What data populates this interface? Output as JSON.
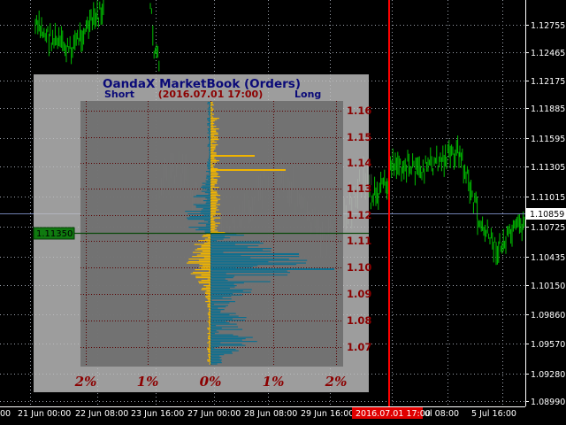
{
  "chart": {
    "price_axis_labels": [
      "1.12755",
      "1.12465",
      "1.12175",
      "1.11885",
      "1.11595",
      "1.11305",
      "1.11015",
      "1.10725",
      "1.10435",
      "1.10150",
      "1.09860",
      "1.09570",
      "1.09280",
      "1.08990"
    ],
    "current_price": "1.10859",
    "time_axis_labels": [
      "00",
      "21 Jun 00:00",
      "22 Jun 08:00",
      "23 Jun 16:00",
      "27 Jun 00:00",
      "28 Jun 08:00",
      "29 Jun 16:00",
      "",
      "ul 08:00",
      "5 Jul 16:00"
    ],
    "time_cursor_label": "2016.07.01 17:00",
    "colors": {
      "background": "#000000",
      "candles": "#00c000",
      "grid": "#9aa0aa",
      "cursor_line": "#ff0000",
      "current_price_line": "#6f7fb0"
    }
  },
  "marketbook": {
    "title": "OandaX MarketBook  (Orders)",
    "short_label": "Short",
    "datetime": "(2016.07.01 17:00)",
    "long_label": "Long",
    "price_marker": "1.11350",
    "price_levels": [
      "1.16",
      "1.15",
      "1.14",
      "1.13",
      "1.12",
      "1.11",
      "1.10",
      "1.09",
      "1.08",
      "1.07"
    ],
    "percent_labels": [
      "2%",
      "1%",
      "0%",
      "1%",
      "2%"
    ],
    "colors": {
      "panel": "#c0c0c0",
      "plot": "#787878",
      "short_bars": "#f0b400",
      "long_bars": "#0f6f8f",
      "text": "#8b0000",
      "title": "#0a0a78"
    }
  }
}
